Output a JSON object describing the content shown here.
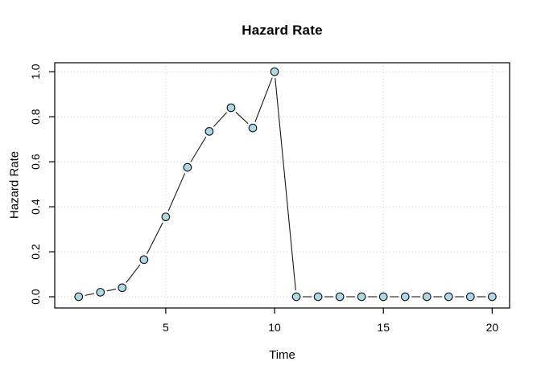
{
  "figure": {
    "title": "Hazard Rate",
    "xlabel": "Time",
    "ylabel": "Hazard Rate"
  },
  "chart_data": {
    "type": "line",
    "title": "Hazard Rate",
    "xlabel": "Time",
    "ylabel": "Hazard Rate",
    "x": [
      1,
      2,
      3,
      4,
      5,
      6,
      7,
      8,
      9,
      10,
      11,
      12,
      13,
      14,
      15,
      16,
      17,
      18,
      19,
      20
    ],
    "y": [
      0.0,
      0.02,
      0.04,
      0.165,
      0.355,
      0.575,
      0.735,
      0.84,
      0.75,
      1.0,
      0.0,
      0.0,
      0.0,
      0.0,
      0.0,
      0.0,
      0.0,
      0.0,
      0.0,
      0.0
    ],
    "xlim": [
      -0.1,
      20.8
    ],
    "ylim": [
      -0.05,
      1.04
    ],
    "xtick_values": [
      5,
      10,
      15,
      20
    ],
    "xtick_labels": [
      "5",
      "10",
      "15",
      "20"
    ],
    "ytick_values": [
      0,
      0.2,
      0.4,
      0.6,
      0.8,
      1.0
    ],
    "ytick_labels": [
      "0.0",
      "0.2",
      "0.4",
      "0.6",
      "0.8",
      "1.0"
    ],
    "grid": true,
    "line_style": "points-and-segments",
    "marker": "circle",
    "style": {
      "marker_fill": "#ADD8E6",
      "marker_stroke": "#111111",
      "line_color": "#1a1a1a",
      "grid_color": "#d4d4d4",
      "axis_color": "#000000",
      "background": "#ffffff"
    }
  }
}
